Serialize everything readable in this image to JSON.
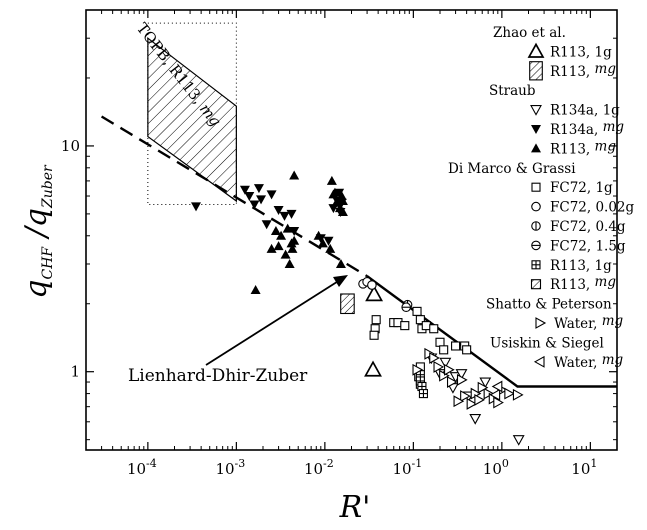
{
  "chart_data": {
    "type": "scatter",
    "x_scale": "log",
    "y_scale": "log",
    "xlim": [
      2e-05,
      20
    ],
    "ylim": [
      0.45,
      40
    ],
    "xlabel": "R'",
    "ylabel": {
      "q1": "q",
      "sub1": "CHF",
      "slash": " /",
      "q2": "q",
      "sub2": "Zuber"
    },
    "x_ticks": [
      {
        "value": 0.0001,
        "base": "10",
        "exp": "-4"
      },
      {
        "value": 0.001,
        "base": "10",
        "exp": "-3"
      },
      {
        "value": 0.01,
        "base": "10",
        "exp": "-2"
      },
      {
        "value": 0.1,
        "base": "10",
        "exp": "-1"
      },
      {
        "value": 1,
        "base": "10",
        "exp": "0"
      },
      {
        "value": 10,
        "base": "10",
        "exp": "1"
      }
    ],
    "y_ticks": [
      {
        "value": 1,
        "label": "1"
      },
      {
        "value": 10,
        "label": "10"
      }
    ],
    "grid": false,
    "legend_position": "right",
    "legend": [
      {
        "type": "group",
        "label": "Zhao et al."
      },
      {
        "type": "entry",
        "marker": "tri-open",
        "label": "R113, 1g"
      },
      {
        "type": "entry",
        "marker": "hatch-rect",
        "label": "R113, ",
        "tail": "mg"
      },
      {
        "type": "group",
        "label": "Straub"
      },
      {
        "type": "entry",
        "marker": "tri-down-open",
        "label": "R134a, 1g"
      },
      {
        "type": "entry",
        "marker": "tri-down-filled",
        "label": "R134a, ",
        "tail": "mg"
      },
      {
        "type": "entry",
        "marker": "tri-filled",
        "label": "R113, ",
        "tail": "mg"
      },
      {
        "type": "group",
        "label": "Di Marco & Grassi"
      },
      {
        "type": "entry",
        "marker": "square-open",
        "label": "FC72, 1g"
      },
      {
        "type": "entry",
        "marker": "circle-open",
        "label": "FC72, 0.02g"
      },
      {
        "type": "entry",
        "marker": "circle-vline",
        "label": "FC72, 0.4g"
      },
      {
        "type": "entry",
        "marker": "circle-hline",
        "label": "FC72, 1.5g"
      },
      {
        "type": "entry",
        "marker": "square-plus",
        "label": "R113, 1g"
      },
      {
        "type": "entry",
        "marker": "square-hatch",
        "label": "R113, ",
        "tail": "mg"
      },
      {
        "type": "group",
        "label": "Shatto & Peterson"
      },
      {
        "type": "entry",
        "marker": "tri-right-open",
        "label": "Water, ",
        "tail": "mg"
      },
      {
        "type": "group",
        "label": "Usiskin & Siegel"
      },
      {
        "type": "entry",
        "marker": "tri-left-open",
        "label": "Water, ",
        "tail": "mg"
      }
    ],
    "annotations": {
      "correlation_label": "Lienhard-Dhir-Zuber",
      "region_label": "TOPB, R113, ",
      "region_label_tail": "mg"
    },
    "series": [
      {
        "name": "Zhao et al. R113, 1g",
        "marker": "tri-open",
        "points": [
          [
            0.036,
            2.2
          ],
          [
            0.035,
            1.02
          ]
        ]
      },
      {
        "name": "Zhao et al. R113, mg",
        "marker": "hatch-rect",
        "points": [
          [
            0.018,
            2.0
          ]
        ]
      },
      {
        "name": "Straub R134a, 1g",
        "marker": "tri-down-open",
        "points": [
          [
            0.16,
            1.15
          ],
          [
            0.2,
            0.98
          ],
          [
            0.23,
            1.1
          ],
          [
            0.3,
            0.95
          ],
          [
            0.35,
            0.98
          ],
          [
            0.5,
            0.62
          ],
          [
            0.65,
            0.9
          ],
          [
            1.55,
            0.5
          ],
          [
            0.28,
            0.85
          ],
          [
            0.42,
            0.78
          ]
        ]
      },
      {
        "name": "Straub R134a, mg",
        "marker": "tri-down-filled",
        "points": [
          [
            0.00035,
            5.4
          ],
          [
            0.00125,
            6.4
          ],
          [
            0.0014,
            6.0
          ],
          [
            0.0016,
            5.5
          ],
          [
            0.0018,
            6.5
          ],
          [
            0.0019,
            5.8
          ],
          [
            0.0022,
            4.5
          ],
          [
            0.0025,
            6.1
          ],
          [
            0.003,
            5.2
          ],
          [
            0.0035,
            4.9
          ],
          [
            0.0042,
            5.0
          ],
          [
            0.0045,
            4.2
          ],
          [
            0.009,
            3.9
          ],
          [
            0.011,
            3.8
          ],
          [
            0.0125,
            5.3
          ],
          [
            0.0138,
            5.7
          ],
          [
            0.015,
            5.1
          ],
          [
            0.0155,
            5.6
          ],
          [
            0.0145,
            6.2
          ]
        ]
      },
      {
        "name": "Straub R113, mg",
        "marker": "tri-filled",
        "points": [
          [
            0.00165,
            2.3
          ],
          [
            0.0025,
            3.5
          ],
          [
            0.0028,
            4.2
          ],
          [
            0.003,
            3.6
          ],
          [
            0.0032,
            4.0
          ],
          [
            0.0036,
            3.3
          ],
          [
            0.0038,
            4.3
          ],
          [
            0.004,
            3.0
          ],
          [
            0.0042,
            3.7
          ],
          [
            0.0043,
            3.5
          ],
          [
            0.0045,
            7.4
          ],
          [
            0.0045,
            3.8
          ],
          [
            0.0085,
            4.0
          ],
          [
            0.0095,
            3.7
          ],
          [
            0.0115,
            3.5
          ],
          [
            0.012,
            7.0
          ],
          [
            0.0125,
            6.1
          ],
          [
            0.013,
            6.2
          ],
          [
            0.0135,
            5.6
          ],
          [
            0.0148,
            5.3
          ],
          [
            0.0152,
            3.0
          ],
          [
            0.016,
            5.1
          ],
          [
            0.0155,
            6.0
          ],
          [
            0.016,
            5.7
          ]
        ]
      },
      {
        "name": "Di Marco & Grassi FC72, 1g",
        "marker": "square-open",
        "points": [
          [
            0.038,
            1.7
          ],
          [
            0.037,
            1.55
          ],
          [
            0.036,
            1.45
          ],
          [
            0.06,
            1.65
          ],
          [
            0.067,
            1.65
          ],
          [
            0.08,
            1.6
          ],
          [
            0.11,
            1.85
          ],
          [
            0.12,
            1.7
          ],
          [
            0.125,
            1.55
          ],
          [
            0.14,
            1.6
          ],
          [
            0.17,
            1.55
          ],
          [
            0.2,
            1.35
          ],
          [
            0.22,
            1.25
          ],
          [
            0.12,
            1.05
          ],
          [
            0.115,
            0.95
          ],
          [
            0.12,
            0.88
          ],
          [
            0.3,
            1.3
          ],
          [
            0.38,
            1.3
          ],
          [
            0.4,
            1.25
          ]
        ]
      },
      {
        "name": "Di Marco & Grassi FC72, 0.02g",
        "marker": "circle-open",
        "points": [
          [
            0.027,
            2.45
          ],
          [
            0.03,
            2.5
          ],
          [
            0.034,
            2.42
          ]
        ]
      },
      {
        "name": "Di Marco & Grassi FC72, 0.4g",
        "marker": "circle-vline",
        "points": [
          [
            0.086,
            1.98
          ]
        ]
      },
      {
        "name": "Di Marco & Grassi FC72, 1.5g",
        "marker": "circle-hline",
        "points": [
          [
            0.083,
            1.93
          ]
        ]
      },
      {
        "name": "Di Marco & Grassi R113, 1g",
        "marker": "square-plus",
        "points": [
          [
            0.12,
            0.97
          ],
          [
            0.12,
            0.91
          ],
          [
            0.125,
            0.86
          ],
          [
            0.13,
            0.8
          ]
        ]
      },
      {
        "name": "Di Marco & Grassi R113, mg",
        "marker": "square-hatch",
        "points": []
      },
      {
        "name": "Shatto & Peterson Water, mg",
        "marker": "tri-right-open",
        "points": [
          [
            0.11,
            1.02
          ],
          [
            0.15,
            1.2
          ],
          [
            0.17,
            1.15
          ],
          [
            0.19,
            1.05
          ],
          [
            0.22,
            0.96
          ],
          [
            0.25,
            1.02
          ],
          [
            0.35,
            0.92
          ],
          [
            0.38,
            0.78
          ],
          [
            0.45,
            0.72
          ],
          [
            0.5,
            0.8
          ],
          [
            0.55,
            0.75
          ],
          [
            0.7,
            0.8
          ],
          [
            0.8,
            0.76
          ],
          [
            0.9,
            0.73
          ],
          [
            1.0,
            0.83
          ],
          [
            1.2,
            0.8
          ],
          [
            1.5,
            0.79
          ],
          [
            0.32,
            0.74
          ],
          [
            0.27,
            0.9
          ],
          [
            0.6,
            0.85
          ]
        ]
      },
      {
        "name": "Usiskin & Siegel Water, mg",
        "marker": "tri-left-open",
        "points": [
          [
            0.85,
            0.79
          ],
          [
            0.9,
            0.86
          ]
        ]
      }
    ],
    "correlation_line": {
      "dashed": [
        [
          3e-05,
          13.5
        ],
        [
          0.03,
          2.65
        ]
      ],
      "solid": [
        [
          0.03,
          2.65
        ],
        [
          1.5,
          0.86
        ],
        [
          20,
          0.86
        ]
      ]
    },
    "topb_region": {
      "box": [
        [
          0.0001,
          5.5
        ],
        [
          0.001,
          35
        ]
      ],
      "hatched_polygon": [
        [
          0.0001,
          30
        ],
        [
          0.0001,
          11
        ],
        [
          0.001,
          5.7
        ],
        [
          0.001,
          15
        ]
      ]
    }
  }
}
